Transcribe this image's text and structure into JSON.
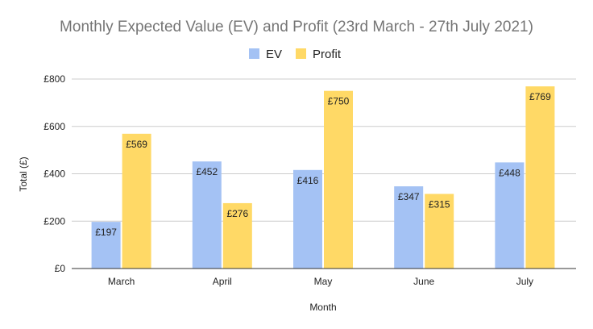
{
  "chart_data": {
    "type": "bar",
    "title": "Monthly Expected Value (EV) and Profit (23rd March - 27th July 2021)",
    "xlabel": "Month",
    "ylabel": "Total (£)",
    "categories": [
      "March",
      "April",
      "May",
      "June",
      "July"
    ],
    "series": [
      {
        "name": "EV",
        "color": "#a4c2f4",
        "values": [
          197,
          452,
          416,
          347,
          448
        ],
        "labels": [
          "£197",
          "£452",
          "£416",
          "£347",
          "£448"
        ]
      },
      {
        "name": "Profit",
        "color": "#ffd966",
        "values": [
          569,
          276,
          750,
          315,
          769
        ],
        "labels": [
          "£569",
          "£276",
          "£750",
          "£315",
          "£769"
        ]
      }
    ],
    "ylim": [
      0,
      800
    ],
    "yticks": [
      0,
      200,
      400,
      600,
      800
    ],
    "ytick_labels": [
      "£0",
      "£200",
      "£400",
      "£600",
      "£800"
    ],
    "grid": true,
    "legend_position": "top-center"
  }
}
